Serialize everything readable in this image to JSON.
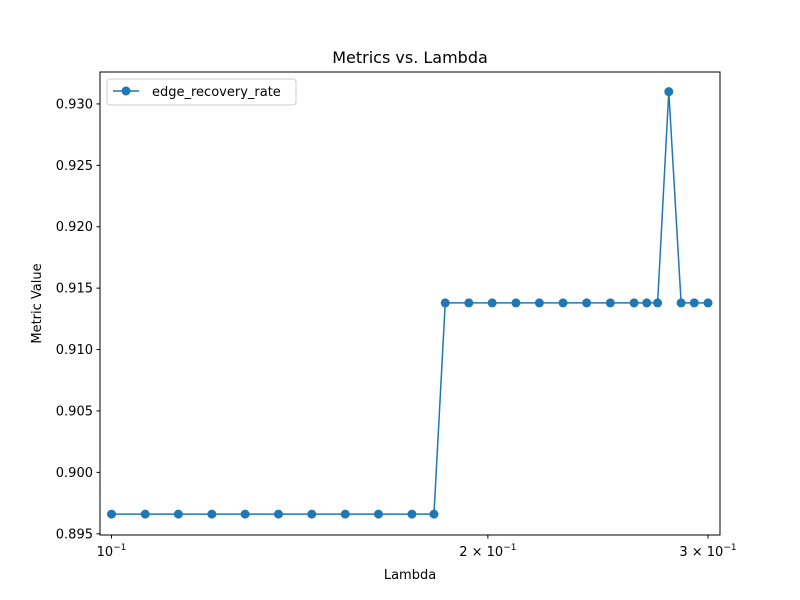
{
  "chart_data": {
    "type": "line",
    "title": "Metrics vs. Lambda",
    "xlabel": "Lambda",
    "ylabel": "Metric Value",
    "xscale": "log",
    "xlim": [
      0.0979,
      0.3067
    ],
    "ylim": [
      0.8949,
      0.9326
    ],
    "grid": false,
    "legend_position": "top-left",
    "color": "#1f77b4",
    "x_ticks": [
      {
        "value": 0.1,
        "base": "10",
        "exp": "−1",
        "coef": ""
      },
      {
        "value": 0.2,
        "base": "10",
        "exp": "−1",
        "coef": "2 × "
      },
      {
        "value": 0.3,
        "base": "10",
        "exp": "−1",
        "coef": "3 × "
      }
    ],
    "y_ticks": [
      0.895,
      0.9,
      0.905,
      0.91,
      0.915,
      0.92,
      0.925,
      0.93
    ],
    "y_tick_labels": [
      "0.895",
      "0.900",
      "0.905",
      "0.910",
      "0.915",
      "0.920",
      "0.925",
      "0.930"
    ],
    "series": [
      {
        "name": "edge_recovery_rate",
        "marker": "circle",
        "x": [
          0.1,
          0.1064,
          0.1131,
          0.1203,
          0.1279,
          0.136,
          0.1446,
          0.1538,
          0.1635,
          0.1739,
          0.1811,
          0.1849,
          0.1931,
          0.2016,
          0.2106,
          0.2199,
          0.2297,
          0.2399,
          0.2506,
          0.2618,
          0.268,
          0.2734,
          0.2791,
          0.2855,
          0.2925,
          0.3
        ],
        "y": [
          0.8966,
          0.8966,
          0.8966,
          0.8966,
          0.8966,
          0.8966,
          0.8966,
          0.8966,
          0.8966,
          0.8966,
          0.8966,
          0.9138,
          0.9138,
          0.9138,
          0.9138,
          0.9138,
          0.9138,
          0.9138,
          0.9138,
          0.9138,
          0.9138,
          0.9138,
          0.931,
          0.9138,
          0.9138,
          0.9138
        ]
      }
    ]
  }
}
